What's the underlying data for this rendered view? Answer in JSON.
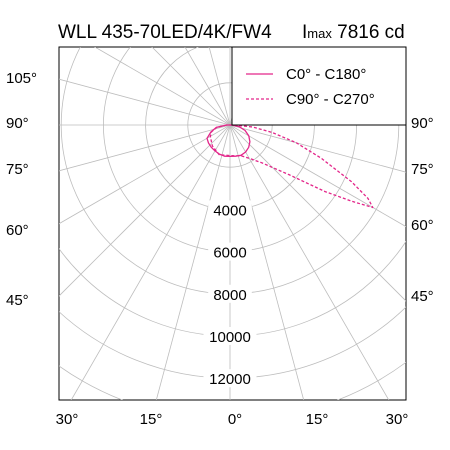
{
  "title": "WLL 435-70LED/4K/FW4",
  "imax": {
    "symbol": "I",
    "subscript": "max",
    "value": "7816 cd"
  },
  "chart_data": {
    "type": "polar-luminous-intensity",
    "title": "WLL 435-70LED/4K/FW4",
    "radial_unit": "cd",
    "radial_ticks": [
      2000,
      4000,
      6000,
      8000,
      10000,
      12000
    ],
    "radial_tick_labels": [
      "4000",
      "6000",
      "8000",
      "10000",
      "12000"
    ],
    "angle_ticks_deg": [
      0,
      15,
      30,
      45,
      60,
      75,
      90,
      105
    ],
    "left_angle_labels": [
      "105°",
      "90°",
      "75°",
      "60°",
      "45°"
    ],
    "right_angle_labels": [
      "90°",
      "75°",
      "60°",
      "45°"
    ],
    "bottom_labels": [
      "30°",
      "15°",
      "0°",
      "15°",
      "30°"
    ],
    "legend_position": "top-right",
    "series": [
      {
        "name": "C0° - C180°",
        "color": "#e3268a",
        "dash": "solid",
        "points": [
          [
            0,
            1490
          ],
          [
            10,
            1500
          ],
          [
            20,
            1530
          ],
          [
            30,
            1480
          ],
          [
            40,
            1380
          ],
          [
            50,
            1230
          ],
          [
            60,
            1030
          ],
          [
            70,
            760
          ],
          [
            80,
            440
          ],
          [
            90,
            80
          ],
          [
            -10,
            1500
          ],
          [
            -20,
            1470
          ],
          [
            -30,
            1420
          ],
          [
            -40,
            1380
          ],
          [
            -50,
            1330
          ],
          [
            -60,
            1260
          ],
          [
            -70,
            960
          ],
          [
            -80,
            660
          ],
          [
            -90,
            150
          ]
        ]
      },
      {
        "name": "C90° - C270°",
        "color": "#e3268a",
        "dash": "dashed",
        "points": [
          [
            0,
            1450
          ],
          [
            20,
            1560
          ],
          [
            30,
            1820
          ],
          [
            40,
            2330
          ],
          [
            50,
            3680
          ],
          [
            55,
            5500
          ],
          [
            58,
            6830
          ],
          [
            60,
            7816
          ],
          [
            62,
            7400
          ],
          [
            65,
            6350
          ],
          [
            70,
            4600
          ],
          [
            75,
            3250
          ],
          [
            80,
            2020
          ],
          [
            85,
            1080
          ],
          [
            90,
            180
          ],
          [
            -20,
            1500
          ],
          [
            -40,
            1300
          ],
          [
            -60,
            1080
          ],
          [
            -70,
            930
          ],
          [
            -80,
            630
          ],
          [
            -90,
            150
          ]
        ]
      }
    ]
  }
}
